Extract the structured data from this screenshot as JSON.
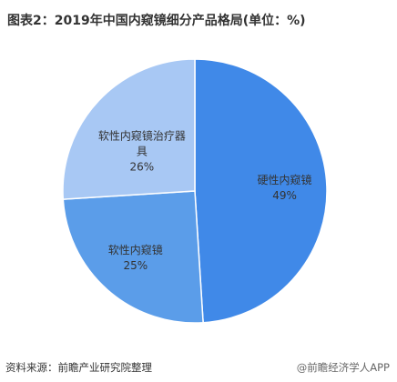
{
  "chart_data": {
    "type": "pie",
    "title": "图表2：2019年中国内窥镜细分产品格局(单位：%)",
    "categories": [
      "硬性内窥镜",
      "软性内窥镜",
      "软性内窥镜治疗器具"
    ],
    "values": [
      49,
      25,
      26
    ],
    "value_labels": [
      "49%",
      "25%",
      "26%"
    ],
    "colors": [
      "#4089e8",
      "#5b9de9",
      "#a8c8f4"
    ]
  },
  "footer": {
    "source": "资料来源：前瞻产业研究院整理",
    "credit": "@前瞻经济学人APP"
  }
}
